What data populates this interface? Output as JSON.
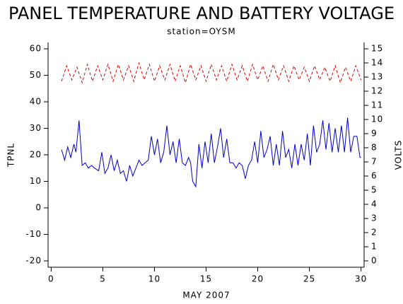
{
  "chart_data": {
    "type": "line",
    "title": "PANEL TEMPERATURE AND BATTERY VOLTAGE",
    "subtitle": "station=OYSM",
    "x_label": "MAY 2007",
    "y_label": "TPNL",
    "y2_label": "VOLTS",
    "xlim": [
      -0.3,
      30.3
    ],
    "xticks": [
      0,
      5,
      10,
      15,
      20,
      25,
      30
    ],
    "ylim": [
      -22.4,
      62.4
    ],
    "yticks": [
      -20,
      -10,
      0,
      10,
      20,
      30,
      40,
      50,
      60
    ],
    "y2lim": [
      -0.45,
      15.45
    ],
    "y2ticks": [
      0,
      1,
      2,
      3,
      4,
      5,
      6,
      7,
      8,
      9,
      10,
      11,
      12,
      13,
      14,
      15
    ],
    "series": [
      {
        "name": "TPNL",
        "color": "#0000cc",
        "axis": "y",
        "x": [
          1.0,
          1.3,
          1.6,
          1.9,
          2.2,
          2.4,
          2.7,
          3.0,
          3.3,
          3.6,
          3.9,
          4.2,
          4.6,
          4.9,
          5.2,
          5.5,
          5.8,
          6.1,
          6.4,
          6.7,
          7.0,
          7.3,
          7.6,
          7.9,
          8.2,
          8.5,
          8.8,
          9.1,
          9.4,
          9.7,
          10.0,
          10.3,
          10.6,
          10.9,
          11.2,
          11.5,
          11.8,
          12.1,
          12.4,
          12.7,
          13.0,
          13.3,
          13.5,
          13.7,
          14.0,
          14.3,
          14.6,
          14.9,
          15.2,
          15.5,
          15.8,
          16.1,
          16.4,
          16.7,
          17.0,
          17.3,
          17.6,
          17.9,
          18.2,
          18.5,
          18.8,
          19.1,
          19.4,
          19.7,
          20.0,
          20.3,
          20.6,
          20.9,
          21.2,
          21.5,
          21.8,
          22.1,
          22.4,
          22.7,
          23.0,
          23.3,
          23.6,
          23.9,
          24.2,
          24.5,
          24.8,
          25.1,
          25.4,
          25.7,
          26.0,
          26.3,
          26.6,
          26.9,
          27.2,
          27.5,
          27.8,
          28.1,
          28.4,
          28.7,
          29.0,
          29.3,
          29.6,
          29.9,
          30.0
        ],
        "values": [
          22,
          18,
          23,
          19,
          24,
          21,
          33,
          16,
          17,
          15,
          16,
          15,
          14,
          21,
          13,
          15,
          20,
          14,
          18,
          13,
          14,
          10,
          16,
          12,
          15,
          18,
          16,
          17,
          18,
          27,
          20,
          26,
          17,
          21,
          31,
          20,
          25,
          17,
          26,
          17,
          16,
          19,
          17,
          10,
          8,
          24,
          15,
          25,
          17,
          28,
          17,
          23,
          30,
          19,
          26,
          17,
          17,
          15,
          17,
          16,
          11,
          16,
          18,
          25,
          17,
          29,
          19,
          22,
          27,
          16,
          24,
          16,
          29,
          19,
          22,
          15,
          24,
          16,
          24,
          18,
          28,
          16,
          31,
          21,
          24,
          33,
          22,
          32,
          21,
          30,
          21,
          31,
          21,
          34,
          21,
          27,
          27,
          19,
          19
        ]
      },
      {
        "name": "VOLTS",
        "color": "#dd0000",
        "axis": "y2",
        "x": [
          1,
          1.5,
          2,
          2.5,
          3,
          3.5,
          4,
          4.5,
          5,
          5.5,
          6,
          6.5,
          7,
          7.5,
          8,
          8.5,
          9,
          9.5,
          10,
          10.5,
          11,
          11.5,
          12,
          12.5,
          13,
          13.5,
          14,
          14.5,
          15,
          15.5,
          16,
          16.5,
          17,
          17.5,
          18,
          18.5,
          19,
          19.5,
          20,
          20.5,
          21,
          21.5,
          22,
          22.5,
          23,
          23.5,
          24,
          24.5,
          25,
          25.5,
          26,
          26.5,
          27,
          27.5,
          28,
          28.5,
          29,
          29.5,
          30
        ],
        "values": [
          12.7,
          13.8,
          12.8,
          13.7,
          12.6,
          13.9,
          12.7,
          13.8,
          12.8,
          13.9,
          12.7,
          13.9,
          12.8,
          13.8,
          12.7,
          14.0,
          12.8,
          13.9,
          12.7,
          13.8,
          12.8,
          13.9,
          12.7,
          13.8,
          12.6,
          13.9,
          12.8,
          13.8,
          12.7,
          13.9,
          12.8,
          13.8,
          12.7,
          13.9,
          12.8,
          13.8,
          12.7,
          13.9,
          12.8,
          13.8,
          12.7,
          13.9,
          12.8,
          13.8,
          12.7,
          13.8,
          12.8,
          13.7,
          12.7,
          13.8,
          12.8,
          13.7,
          12.7,
          13.8,
          12.6,
          13.7,
          12.7,
          13.8,
          12.8
        ]
      }
    ]
  }
}
